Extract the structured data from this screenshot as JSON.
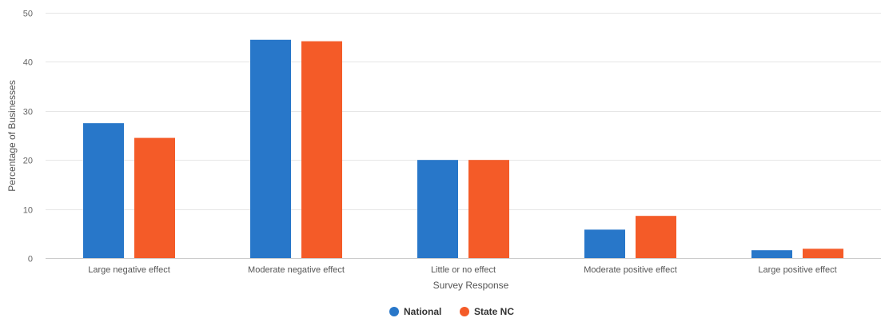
{
  "chart_data": {
    "type": "bar",
    "categories": [
      "Large negative effect",
      "Moderate negative effect",
      "Little or no effect",
      "Moderate positive effect",
      "Large positive effect"
    ],
    "series": [
      {
        "name": "National",
        "color": "#2877c9",
        "values": [
          27.5,
          44.5,
          20.0,
          5.8,
          1.6
        ]
      },
      {
        "name": "State NC",
        "color": "#f45b28",
        "values": [
          24.5,
          44.2,
          20.0,
          8.6,
          1.9
        ]
      }
    ],
    "xlabel": "Survey Response",
    "ylabel": "Percentage of Businesses",
    "ylim": [
      0,
      50
    ],
    "yticks": [
      0,
      10,
      20,
      30,
      40,
      50
    ],
    "grid": true,
    "legend_position": "bottom-center"
  }
}
